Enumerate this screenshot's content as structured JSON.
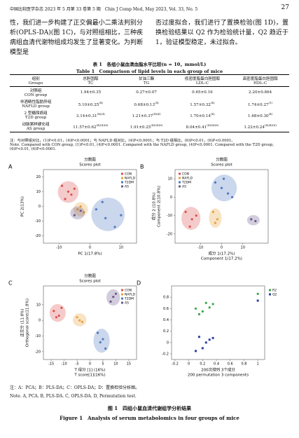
{
  "header": {
    "left": "中国比较医学杂志 2023 年 5 月第 33 卷第 5 期　Chin J Comp Med, May 2023, Vol. 33, No. 5",
    "page": "27"
  },
  "body": {
    "left": "性，我们进一步构建了正交偏最小二乘法判别分析(OPLS-DA)(图 1C)，与对照组相比，三种疾病组血清代谢物组成均发生了显著变化。为判断模型是",
    "right": "否过度拟合，我们进行了置换检验(图 1D)，置换检验结果以 Q2 作为检验统计量，Q2 趋近于 1，验证模型稳定，未过拟合。"
  },
  "table": {
    "title_zh": "表 1　各组小鼠血清血脂水平比较(n = 10，mmol/L)",
    "title_en": "Table 1　Comparison of lipid levels in each group of mice",
    "columns": [
      {
        "zh": "组别",
        "en": "Groups"
      },
      {
        "zh": "总胆固醇",
        "en": "TC"
      },
      {
        "zh": "甘油三酯",
        "en": "TG"
      },
      {
        "zh": "低密度脂蛋白胆固醇",
        "en": "LDL-C"
      },
      {
        "zh": "高密度脂蛋白胆固醇",
        "en": "HDL-C"
      }
    ],
    "rows": [
      [
        {
          "zh": "对照组",
          "en": "CON group"
        },
        {
          "text": "1.94±0.35"
        },
        {
          "text": "0.27±0.07"
        },
        {
          "text": "0.65±0.16"
        },
        {
          "text": "2.20±0.864"
        }
      ],
      [
        {
          "zh": "非酒精性脂肪肝组",
          "en": "NAFLD group"
        },
        {
          "text": "5.10±0.25",
          "sup": "(4)"
        },
        {
          "text": "0.68±0.13",
          "sup": "(4)"
        },
        {
          "text": "1.57±0.32",
          "sup": "(4)"
        },
        {
          "text": "1.74±0.27",
          "sup": "(1)"
        }
      ],
      [
        {
          "zh": "2 型糖尿病组",
          "en": "T2D group"
        },
        {
          "text": "3.14±0.31",
          "sup": "(4)(4)"
        },
        {
          "text": "1.21±0.37",
          "sup": "(4)(4)"
        },
        {
          "text": "1.70±0.14",
          "sup": "(4)"
        },
        {
          "text": "1.68±0.30",
          "sup": "(4)"
        }
      ],
      [
        {
          "zh": "动脉粥样硬化组",
          "en": "AS group"
        },
        {
          "text": "11.57±0.62",
          "sup": "(4)(4)(6)"
        },
        {
          "text": "1.91±0.25",
          "sup": "(4)(4)(6)"
        },
        {
          "text": "8.04±0.41",
          "sup": "(4)(4)(6)"
        },
        {
          "text": "1.22±0.24",
          "sup": "(4)(4)(6)"
        }
      ]
    ],
    "note_zh": "注：与对照组对比，(1)P<0.01，(4)P<0.0001；与 NAFLD 组对比，(4)P<0.0001；与 T2D 组相比，(6)P<0.01，(6)P<0.0001。",
    "note_en": "Note. Compared with CON group, (1)P<0.01, (4)P<0.0001. Compared with the NAFLD group, (4)P<0.0001. Compared with the T2D group, (6)P<0.01, (6)P<0.0001."
  },
  "figure": {
    "panels": [
      {
        "type": "scatter",
        "label": "A",
        "title": [
          "分数图",
          "Scores plot"
        ],
        "xlabel": [
          "PC 1(17.8%)"
        ],
        "ylabel": [
          "PC 2(13%)"
        ],
        "xlim": [
          -15,
          15
        ],
        "ylim": [
          -25,
          25
        ],
        "xticks": [
          -10,
          0,
          10
        ],
        "yticks": [
          -20,
          -10,
          0,
          10,
          20
        ],
        "ellipses": true,
        "legend": "top-right",
        "groups": [
          {
            "name": "CON",
            "color": "#d9534f",
            "x": [
              -9,
              -7,
              -6,
              -8,
              -5
            ],
            "y": [
              14,
              10,
              8,
              5,
              12
            ]
          },
          {
            "name": "NAFLD",
            "color": "#e8a13a",
            "x": [
              -4,
              -2,
              -3
            ],
            "y": [
              -2,
              -4,
              0
            ]
          },
          {
            "name": "T2DM",
            "color": "#4f79c0",
            "x": [
              2,
              5,
              8,
              4,
              10
            ],
            "y": [
              -2,
              -8,
              -14,
              3,
              -6
            ]
          },
          {
            "name": "AS",
            "color": "#6a5a8c",
            "x": [
              -5,
              -3
            ],
            "y": [
              -6,
              -3
            ]
          }
        ]
      },
      {
        "type": "scatter",
        "label": "B",
        "title": [
          "分数图",
          "Scores plot"
        ],
        "xlabel": [
          "成分 1(17.2%)",
          "Component 1(17.2%)"
        ],
        "ylabel": [
          "成分 2 (10.8%)",
          "Component 2(10.8%)"
        ],
        "xlim": [
          -22,
          22
        ],
        "ylim": [
          -25,
          15
        ],
        "xticks": [
          -10,
          0,
          10
        ],
        "yticks": [
          -20,
          -10,
          0,
          10
        ],
        "ellipses": true,
        "legend": "top-left",
        "groups": [
          {
            "name": "CON",
            "color": "#d9534f",
            "x": [
              -17,
              -14,
              -15,
              -12
            ],
            "y": [
              -8,
              -12,
              -16,
              -10
            ]
          },
          {
            "name": "NAFLD",
            "color": "#e8a13a",
            "x": [
              -4,
              -2,
              -3
            ],
            "y": [
              -8,
              -12,
              -14
            ]
          },
          {
            "name": "T2DM",
            "color": "#4f79c0",
            "x": [
              -3,
              0,
              3,
              5,
              1
            ],
            "y": [
              8,
              5,
              2,
              0,
              10
            ]
          },
          {
            "name": "AS",
            "color": "#6a5a8c",
            "x": [
              14,
              16
            ],
            "y": [
              -12,
              -13
            ]
          }
        ]
      },
      {
        "type": "scatter",
        "label": "C",
        "title": [
          "分数图",
          "Scores plot"
        ],
        "xlabel": [
          "T 得分 [1] (16%)",
          "T score[1](16%)"
        ],
        "ylabel": [
          "正交分 (11.8%)",
          "Orthogonal score(11.8%)"
        ],
        "xlim": [
          -18,
          18
        ],
        "ylim": [
          -25,
          22
        ],
        "xticks": [
          -15,
          -10,
          -5,
          0,
          5,
          10,
          15
        ],
        "yticks": [
          -20,
          -10,
          0,
          10
        ],
        "ellipses": true,
        "legend": "top-right",
        "groups": [
          {
            "name": "CON",
            "color": "#d9534f",
            "x": [
              -14,
              -12,
              -11,
              -13
            ],
            "y": [
              6,
              3,
              8,
              2
            ]
          },
          {
            "name": "NAFLD",
            "color": "#e8a13a",
            "x": [
              -5,
              -3,
              -4
            ],
            "y": [
              2,
              -1,
              0
            ]
          },
          {
            "name": "T2DM",
            "color": "#4f79c0",
            "x": [
              3,
              5,
              6,
              4
            ],
            "y": [
              -8,
              -12,
              -18,
              -14
            ]
          },
          {
            "name": "AS",
            "color": "#6a5a8c",
            "x": [
              8,
              9,
              10
            ],
            "y": [
              12,
              15,
              17
            ]
          }
        ]
      },
      {
        "type": "scatter",
        "label": "D",
        "xlabel": [
          "200次排列 3个成分",
          "200 permutation 3 components"
        ],
        "xlim": [
          -0.25,
          1.1
        ],
        "ylim": [
          -0.3,
          1.0
        ],
        "xticks": [
          -0.2,
          0,
          0.2,
          0.4,
          0.6,
          0.8,
          1
        ],
        "yticks": [
          -0.2,
          0,
          0.2,
          0.4,
          0.6,
          0.8
        ],
        "ellipses": false,
        "legend": "right",
        "groups": [
          {
            "name": "R2",
            "color": "#3aa54a",
            "x": [
              1,
              0.3,
              0.2,
              0.15,
              0.25,
              0.1,
              0.35
            ],
            "y": [
              0.86,
              0.62,
              0.55,
              0.5,
              0.7,
              0.6,
              0.68
            ]
          },
          {
            "name": "Q2",
            "color": "#3040a0",
            "x": [
              1,
              0.3,
              0.2,
              0.15,
              0.25,
              0.1,
              0.35
            ],
            "y": [
              0.74,
              0.05,
              -0.1,
              0.1,
              0,
              -0.15,
              0.08
            ]
          }
        ]
      }
    ],
    "note_zh": "注：A：PCA；B：PLS-DA；C：OPLS-DA；D：置换检验分析图。",
    "note_en": "Note. A, PCA. B, PLS-DA. C, OPLS-DA. D, Permutation test.",
    "caption_zh": "图 1　四组小鼠血清代谢组学分析结果",
    "caption_en": "Figure 1　Analysis of serum metabolomics in four groups of mice"
  }
}
